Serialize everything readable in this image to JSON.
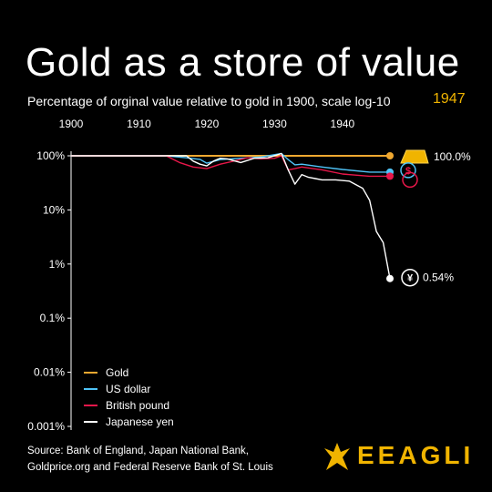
{
  "title": "Gold as a store of value",
  "subtitle": "Percentage of orginal value relative to gold in 1900, scale log-10",
  "current_year": "1947",
  "source": {
    "line1": "Source: Bank of England, Japan National Bank,",
    "line2": "Goldprice.org and Federal Reserve Bank of St. Louis"
  },
  "brand": {
    "name": "EEAGLI"
  },
  "colors": {
    "gold": "#f0a830",
    "usd": "#4fc3f7",
    "gbp": "#e8174a",
    "jpy": "#ffffff",
    "accent": "#f0b400"
  },
  "chart_data": {
    "type": "line",
    "title": "Gold as a store of value",
    "ylabel": "Percentage of orginal value relative to gold in 1900, scale log-10",
    "y_scale": "log10",
    "ylim": [
      0.001,
      100
    ],
    "xlim": [
      1900,
      1947
    ],
    "x_ticks": [
      "1900",
      "1910",
      "1920",
      "1930",
      "1940"
    ],
    "y_ticks": [
      "100%",
      "10%",
      "1%",
      "0.1%",
      "0.01%",
      "0.001%"
    ],
    "legend_position": "bottom-left",
    "series": [
      {
        "name": "Gold",
        "color": "#f0a830",
        "end_label": "100.0%",
        "x": [
          1900,
          1947
        ],
        "y": [
          100,
          100
        ]
      },
      {
        "name": "US dollar",
        "color": "#4fc3f7",
        "x": [
          1900,
          1914,
          1917,
          1919,
          1920,
          1922,
          1925,
          1928,
          1931,
          1932,
          1933,
          1934,
          1937,
          1940,
          1944,
          1947
        ],
        "y": [
          100,
          100,
          92,
          86,
          73,
          85,
          90,
          95,
          110,
          85,
          68,
          70,
          62,
          56,
          50,
          50
        ]
      },
      {
        "name": "British pound",
        "color": "#e8174a",
        "x": [
          1900,
          1914,
          1916,
          1918,
          1920,
          1922,
          1924,
          1926,
          1928,
          1930,
          1931,
          1932,
          1933,
          1934,
          1937,
          1940,
          1944,
          1947
        ],
        "y": [
          100,
          100,
          75,
          62,
          58,
          70,
          80,
          92,
          88,
          90,
          100,
          55,
          58,
          62,
          55,
          46,
          42,
          42
        ]
      },
      {
        "name": "Japanese yen",
        "color": "#ffffff",
        "end_label": "0.54%",
        "x": [
          1900,
          1917,
          1918,
          1919,
          1920,
          1921,
          1922,
          1923,
          1925,
          1927,
          1929,
          1931,
          1932,
          1933,
          1934,
          1935,
          1936,
          1937,
          1939,
          1941,
          1943,
          1944,
          1945,
          1946,
          1947
        ],
        "y": [
          100,
          100,
          80,
          70,
          65,
          80,
          90,
          88,
          75,
          90,
          92,
          110,
          55,
          30,
          45,
          40,
          38,
          36,
          36,
          34,
          25,
          15,
          4,
          2.5,
          0.54
        ]
      }
    ]
  }
}
